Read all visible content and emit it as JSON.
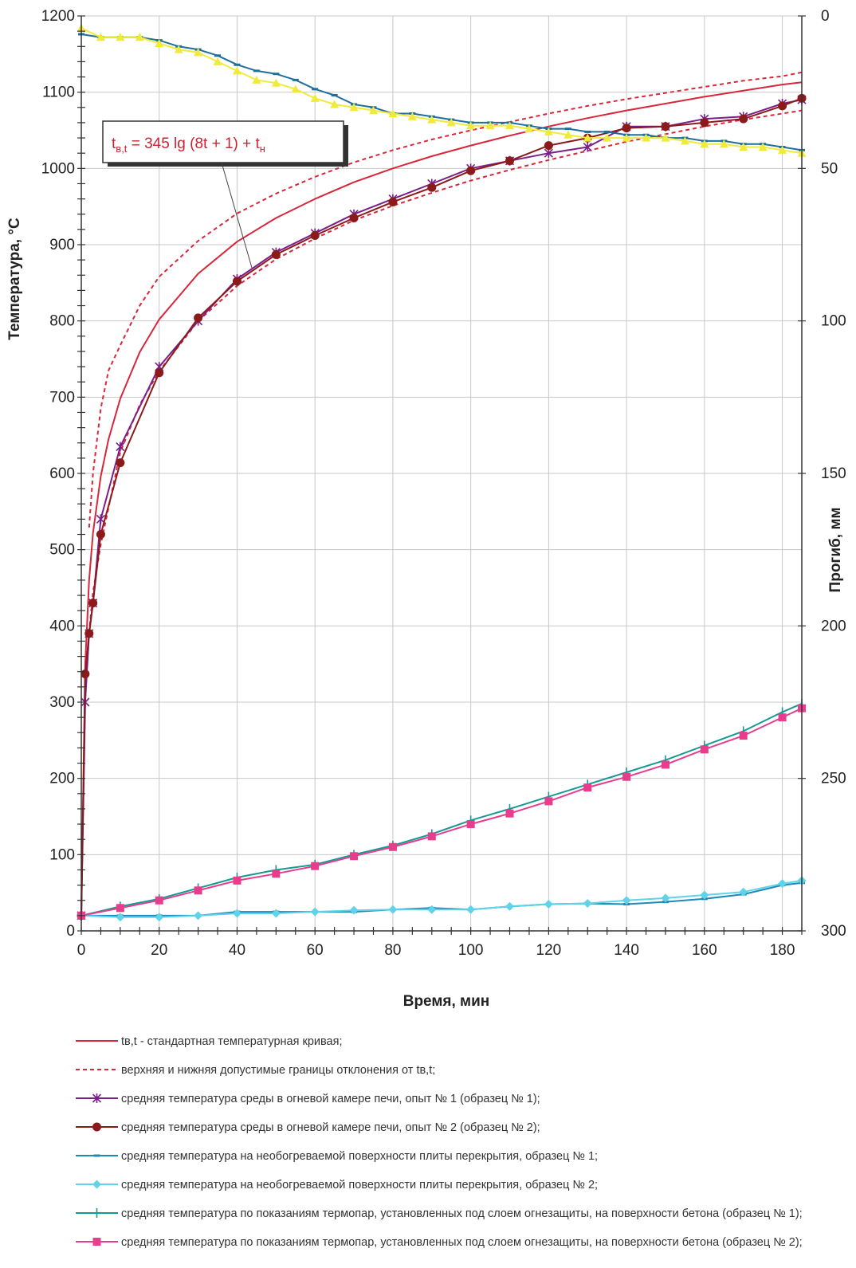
{
  "chart_data": {
    "type": "line",
    "title": "",
    "xlabel": "Время, мин",
    "ylabel": "Температура, °С",
    "y2label": "Прогиб, мм",
    "xlim": [
      0,
      185
    ],
    "ylim": [
      0,
      1200
    ],
    "y2lim": [
      0,
      300
    ],
    "y2_inverted": true,
    "x_ticks": [
      0,
      20,
      40,
      60,
      80,
      100,
      120,
      140,
      160,
      180
    ],
    "y_ticks": [
      0,
      100,
      200,
      300,
      400,
      500,
      600,
      700,
      800,
      900,
      1000,
      1100,
      1200
    ],
    "y2_ticks": [
      0,
      50,
      100,
      150,
      200,
      250,
      300
    ],
    "grid": true,
    "legend_position": "bottom",
    "annotation": {
      "main": "t",
      "sub": "в,t",
      "eq": " = 345 lg (8t + 1) + t",
      "sub2": "н"
    },
    "series": [
      {
        "legend": "tв,t - стандартная температурная кривая;",
        "color": "#d8263a",
        "style": "solid",
        "marker": "none",
        "axis": "temperature",
        "x": [
          0,
          1,
          2,
          3,
          5,
          7,
          10,
          15,
          20,
          30,
          40,
          50,
          60,
          70,
          80,
          90,
          100,
          110,
          120,
          130,
          140,
          150,
          160,
          170,
          180,
          185
        ],
        "values": [
          20,
          349,
          460,
          522,
          596,
          645,
          698,
          759,
          802,
          862,
          904,
          935,
          960,
          982,
          1000,
          1016,
          1030,
          1043,
          1055,
          1066,
          1076,
          1085,
          1094,
          1102,
          1110,
          1113
        ]
      },
      {
        "legend": "верхняя и нижняя допустимые границы отклонения от tв,t;",
        "color": "#d8263a",
        "style": "dashed",
        "marker": "none",
        "axis": "temperature",
        "x": [
          2,
          3,
          5,
          7,
          10,
          15,
          20,
          30,
          40,
          50,
          60,
          70,
          80,
          90,
          100,
          110,
          120,
          130,
          140,
          150,
          160,
          170,
          180,
          185
        ],
        "values": [
          529,
          600,
          685,
          735,
          768,
          820,
          858,
          905,
          941,
          967,
          989,
          1008,
          1024,
          1038,
          1050,
          1061,
          1072,
          1082,
          1091,
          1099,
          1107,
          1115,
          1121,
          1126
        ]
      },
      {
        "legend": "",
        "color": "#d8263a",
        "style": "dashed",
        "marker": "none",
        "axis": "temperature",
        "x": [
          2,
          3,
          5,
          7,
          10,
          15,
          20,
          30,
          40,
          50,
          60,
          70,
          80,
          90,
          100,
          110,
          120,
          130,
          140,
          150,
          160,
          170,
          180,
          185
        ],
        "values": [
          391,
          444,
          507,
          555,
          628,
          690,
          734,
          800,
          846,
          881,
          908,
          932,
          951,
          968,
          984,
          998,
          1011,
          1023,
          1035,
          1045,
          1055,
          1064,
          1072,
          1076
        ]
      },
      {
        "legend": "средняя температура среды в огневой камере печи, опыт № 1 (образец № 1);",
        "color": "#7a1f8a",
        "style": "solid",
        "marker": "star",
        "axis": "temperature",
        "x": [
          0,
          1,
          2,
          3,
          5,
          10,
          20,
          30,
          40,
          50,
          60,
          70,
          80,
          90,
          100,
          110,
          120,
          130,
          140,
          150,
          160,
          170,
          180,
          185
        ],
        "values": [
          20,
          300,
          390,
          430,
          540,
          635,
          740,
          800,
          855,
          890,
          915,
          940,
          960,
          980,
          1000,
          1010,
          1020,
          1028,
          1055,
          1055,
          1065,
          1068,
          1085,
          1090
        ]
      },
      {
        "legend": "средняя температура среды в огневой камере печи, опыт № 2 (образец № 2);",
        "color": "#8b1a1a",
        "style": "solid",
        "marker": "circle",
        "axis": "temperature",
        "x": [
          0,
          1,
          2,
          3,
          5,
          10,
          20,
          30,
          40,
          50,
          60,
          70,
          80,
          90,
          100,
          110,
          120,
          130,
          140,
          150,
          160,
          170,
          180,
          185
        ],
        "values": [
          20,
          337,
          390,
          430,
          520,
          614,
          732,
          804,
          852,
          887,
          912,
          935,
          956,
          975,
          997,
          1010,
          1030,
          1040,
          1053,
          1055,
          1060,
          1065,
          1082,
          1092
        ]
      },
      {
        "legend": "средняя температура на необогреваемой поверхности плиты перекрытия, образец № 1;",
        "color": "#1f8ab8",
        "style": "solid",
        "marker": "dash",
        "axis": "temperature",
        "x": [
          0,
          10,
          20,
          30,
          40,
          50,
          60,
          70,
          80,
          90,
          100,
          110,
          120,
          130,
          140,
          150,
          160,
          170,
          180,
          185
        ],
        "values": [
          20,
          20,
          20,
          20,
          25,
          25,
          25,
          25,
          28,
          30,
          28,
          32,
          35,
          36,
          35,
          38,
          42,
          48,
          60,
          63
        ]
      },
      {
        "legend": "средняя температура на необогреваемой поверхности плиты перекрытия, образец № 2;",
        "color": "#5fd3e8",
        "style": "solid",
        "marker": "diamond",
        "axis": "temperature",
        "x": [
          0,
          10,
          20,
          30,
          40,
          50,
          60,
          70,
          80,
          90,
          100,
          110,
          120,
          130,
          140,
          150,
          160,
          170,
          180,
          185
        ],
        "values": [
          20,
          18,
          18,
          20,
          23,
          23,
          25,
          27,
          28,
          28,
          28,
          32,
          35,
          36,
          40,
          43,
          47,
          51,
          62,
          66
        ]
      },
      {
        "legend": "средняя температура по показаниям термопар, установленных под слоем огнезащиты, на поверхности бетона (образец № 1);",
        "color": "#139a96",
        "style": "solid",
        "marker": "plus",
        "axis": "temperature",
        "x": [
          0,
          10,
          20,
          30,
          40,
          50,
          60,
          70,
          80,
          90,
          100,
          110,
          120,
          130,
          140,
          150,
          160,
          170,
          180,
          185
        ],
        "values": [
          20,
          32,
          42,
          56,
          70,
          80,
          87,
          100,
          112,
          127,
          145,
          160,
          176,
          192,
          208,
          224,
          243,
          262,
          287,
          298
        ]
      },
      {
        "legend": "средняя температура по показаниям термопар, установленных под слоем огнезащиты, на поверхности бетона (образец № 2);",
        "color": "#e83c8c",
        "style": "solid",
        "marker": "square",
        "axis": "temperature",
        "x": [
          0,
          10,
          20,
          30,
          40,
          50,
          60,
          70,
          80,
          90,
          100,
          110,
          120,
          130,
          140,
          150,
          160,
          170,
          180,
          185
        ],
        "values": [
          20,
          30,
          40,
          53,
          66,
          75,
          85,
          98,
          110,
          124,
          140,
          154,
          170,
          188,
          202,
          218,
          238,
          256,
          280,
          292
        ]
      },
      {
        "legend": "",
        "color": "#1f6f9a",
        "style": "solid",
        "marker": "dash",
        "axis": "deflection",
        "x": [
          0,
          5,
          10,
          15,
          20,
          25,
          30,
          35,
          40,
          45,
          50,
          55,
          60,
          65,
          70,
          75,
          80,
          85,
          90,
          95,
          100,
          105,
          110,
          115,
          120,
          125,
          130,
          135,
          140,
          145,
          150,
          155,
          160,
          165,
          170,
          175,
          180,
          185
        ],
        "values": [
          6,
          7,
          7,
          7,
          8,
          10,
          11,
          13,
          16,
          18,
          19,
          21,
          24,
          26,
          29,
          30,
          32,
          32,
          33,
          34,
          35,
          35,
          35,
          36,
          37,
          37,
          38,
          38,
          39,
          39,
          40,
          40,
          41,
          41,
          42,
          42,
          43,
          44
        ]
      },
      {
        "legend": "",
        "color": "#f0ea3a",
        "style": "solid",
        "marker": "triangle",
        "axis": "deflection",
        "x": [
          0,
          5,
          10,
          15,
          20,
          25,
          30,
          35,
          40,
          45,
          50,
          55,
          60,
          65,
          70,
          75,
          80,
          85,
          90,
          95,
          100,
          105,
          110,
          115,
          120,
          125,
          130,
          135,
          140,
          145,
          150,
          155,
          160,
          165,
          170,
          175,
          180,
          185
        ],
        "values": [
          4,
          7,
          7,
          7,
          9,
          11,
          12,
          15,
          18,
          21,
          22,
          24,
          27,
          29,
          30,
          31,
          32,
          33,
          34,
          35,
          36,
          36,
          36,
          37,
          38,
          39,
          40,
          40,
          40,
          40,
          40,
          41,
          42,
          42,
          43,
          43,
          44,
          45
        ]
      }
    ]
  }
}
